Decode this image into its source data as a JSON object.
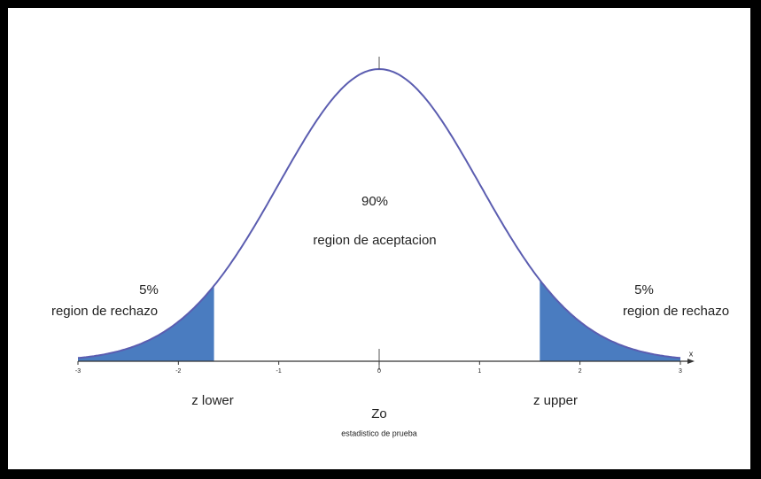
{
  "axis": {
    "label": "x",
    "ticks": [
      -3,
      -2,
      -1,
      0,
      1,
      2,
      3
    ]
  },
  "center": {
    "percent": "90%",
    "label": "region de aceptacion"
  },
  "left_tail": {
    "percent": "5%",
    "label": "region de rechazo",
    "bound": "z  lower"
  },
  "right_tail": {
    "percent": "5%",
    "label": "region de rechazo",
    "bound": "z upper"
  },
  "statistic": {
    "symbol": "Zo",
    "label": "estadistico de prueba"
  }
}
